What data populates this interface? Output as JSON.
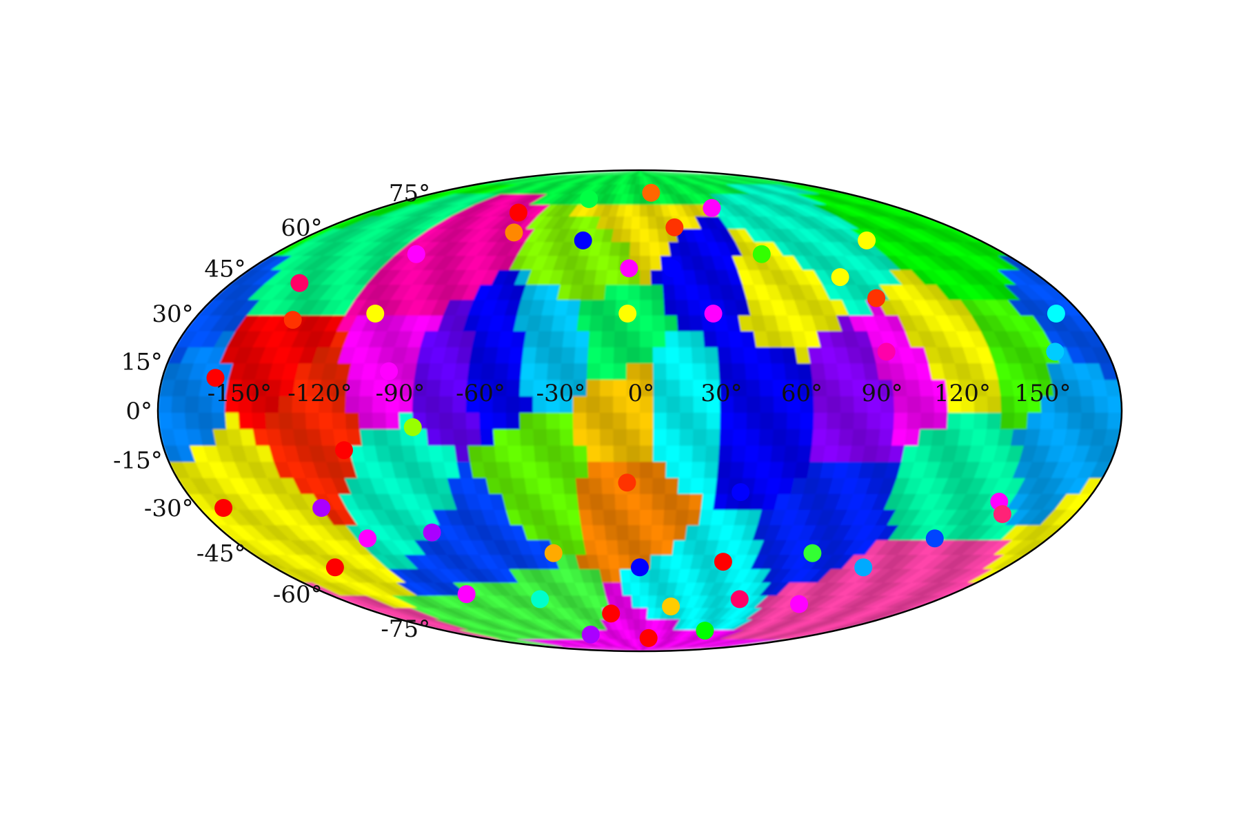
{
  "chart_data": {
    "type": "heatmap",
    "projection": "Mollweide",
    "title": "",
    "xlabel": "",
    "ylabel": "",
    "grid": false,
    "legend": "none",
    "colormap": "hsv",
    "longitude_ticks": [
      {
        "value": -150,
        "label": "-150°"
      },
      {
        "value": -120,
        "label": "-120°"
      },
      {
        "value": -90,
        "label": "-90°"
      },
      {
        "value": -60,
        "label": "-60°"
      },
      {
        "value": -30,
        "label": "-30°"
      },
      {
        "value": 0,
        "label": "0°"
      },
      {
        "value": 30,
        "label": "30°"
      },
      {
        "value": 60,
        "label": "60°"
      },
      {
        "value": 90,
        "label": "90°"
      },
      {
        "value": 120,
        "label": "120°"
      },
      {
        "value": 150,
        "label": "150°"
      }
    ],
    "latitude_ticks": [
      {
        "value": 75,
        "label": "75°"
      },
      {
        "value": 60,
        "label": "60°"
      },
      {
        "value": 45,
        "label": "45°"
      },
      {
        "value": 30,
        "label": "30°"
      },
      {
        "value": 15,
        "label": "15°"
      },
      {
        "value": 0,
        "label": "0°"
      },
      {
        "value": -15,
        "label": "-15°"
      },
      {
        "value": -30,
        "label": "-30°"
      },
      {
        "value": -45,
        "label": "-45°"
      },
      {
        "value": -60,
        "label": "-60°"
      },
      {
        "value": -75,
        "label": "-75°"
      }
    ],
    "xlim": [
      -180,
      180
    ],
    "ylim": [
      -90,
      90
    ],
    "regions": [
      {
        "lon": -140,
        "lat": 15,
        "color": "#ff0000"
      },
      {
        "lon": -125,
        "lat": 0,
        "color": "#ff2a00"
      },
      {
        "lon": -160,
        "lat": -20,
        "color": "#ffff00"
      },
      {
        "lon": -95,
        "lat": 15,
        "color": "#ff00ff"
      },
      {
        "lon": -75,
        "lat": 10,
        "color": "#6600ff"
      },
      {
        "lon": -55,
        "lat": 15,
        "color": "#0000ff"
      },
      {
        "lon": -35,
        "lat": 20,
        "color": "#00ccff"
      },
      {
        "lon": -10,
        "lat": 25,
        "color": "#00ff66"
      },
      {
        "lon": -5,
        "lat": 0,
        "color": "#ffcc00"
      },
      {
        "lon": -5,
        "lat": -25,
        "color": "#ff8800"
      },
      {
        "lon": -40,
        "lat": -20,
        "color": "#66ff00"
      },
      {
        "lon": -90,
        "lat": -20,
        "color": "#00ffcc"
      },
      {
        "lon": -70,
        "lat": -40,
        "color": "#0044ff"
      },
      {
        "lon": 15,
        "lat": 0,
        "color": "#00ffff"
      },
      {
        "lon": 45,
        "lat": 0,
        "color": "#0000ff"
      },
      {
        "lon": 85,
        "lat": 5,
        "color": "#8800ff"
      },
      {
        "lon": 100,
        "lat": 10,
        "color": "#ff00ff"
      },
      {
        "lon": 120,
        "lat": 20,
        "color": "#ffff00"
      },
      {
        "lon": 145,
        "lat": 20,
        "color": "#44ff00"
      },
      {
        "lon": 165,
        "lat": 0,
        "color": "#00aaff"
      },
      {
        "lon": 120,
        "lat": -20,
        "color": "#00ffaa"
      },
      {
        "lon": 85,
        "lat": -35,
        "color": "#0022ff"
      },
      {
        "lon": 60,
        "lat": 40,
        "color": "#ffff00"
      },
      {
        "lon": 30,
        "lat": 45,
        "color": "#0000ff"
      },
      {
        "lon": -20,
        "lat": 50,
        "color": "#88ff00"
      },
      {
        "lon": -100,
        "lat": 45,
        "color": "#ff00aa"
      },
      {
        "lon": -140,
        "lat": 45,
        "color": "#00ff88"
      },
      {
        "lon": 0,
        "lat": 60,
        "color": "#ffee00"
      },
      {
        "lon": 90,
        "lat": 55,
        "color": "#00ffcc"
      },
      {
        "lon": 150,
        "lat": 50,
        "color": "#00ff00"
      },
      {
        "lon": -170,
        "lat": 0,
        "color": "#0088ff"
      },
      {
        "lon": 175,
        "lat": 30,
        "color": "#0055ff"
      },
      {
        "lon": 30,
        "lat": -60,
        "color": "#00ffff"
      },
      {
        "lon": -60,
        "lat": -65,
        "color": "#44ff44"
      },
      {
        "lon": 120,
        "lat": -55,
        "color": "#ff44aa"
      },
      {
        "lon": 0,
        "lat": -80,
        "color": "#ff00ff"
      },
      {
        "lon": 0,
        "lat": 80,
        "color": "#00ff44"
      }
    ],
    "points": [
      {
        "lon": -160,
        "lat": 10,
        "color": "#ff0000"
      },
      {
        "lon": -140,
        "lat": 28,
        "color": "#ff3300"
      },
      {
        "lon": -112,
        "lat": -12,
        "color": "#ff0000"
      },
      {
        "lon": -108,
        "lat": 30,
        "color": "#ffff00"
      },
      {
        "lon": -95,
        "lat": 12,
        "color": "#ff00ff"
      },
      {
        "lon": -85,
        "lat": -5,
        "color": "#99ff00"
      },
      {
        "lon": -5,
        "lat": 30,
        "color": "#ffff00"
      },
      {
        "lon": -5,
        "lat": -22,
        "color": "#ff3300"
      },
      {
        "lon": 40,
        "lat": -25,
        "color": "#0000ff"
      },
      {
        "lon": 30,
        "lat": 30,
        "color": "#ff00ff"
      },
      {
        "lon": 95,
        "lat": 18,
        "color": "#ff00aa"
      },
      {
        "lon": 160,
        "lat": 18,
        "color": "#00ccff"
      },
      {
        "lon": 145,
        "lat": -28,
        "color": "#ff00ff"
      },
      {
        "lon": 150,
        "lat": -32,
        "color": "#ff2277"
      },
      {
        "lon": 90,
        "lat": 42,
        "color": "#ffff00"
      },
      {
        "lon": 100,
        "lat": 35,
        "color": "#ff3300"
      },
      {
        "lon": 60,
        "lat": 50,
        "color": "#33ff00"
      },
      {
        "lon": 20,
        "lat": 60,
        "color": "#ff3300"
      },
      {
        "lon": -30,
        "lat": 55,
        "color": "#0000ff"
      },
      {
        "lon": -70,
        "lat": 58,
        "color": "#ff8800"
      },
      {
        "lon": -110,
        "lat": 50,
        "color": "#ff00ff"
      },
      {
        "lon": -150,
        "lat": 40,
        "color": "#ff0066"
      },
      {
        "lon": -120,
        "lat": -40,
        "color": "#ff00ff"
      },
      {
        "lon": -90,
        "lat": -38,
        "color": "#aa00ff"
      },
      {
        "lon": -40,
        "lat": -45,
        "color": "#ffaa00"
      },
      {
        "lon": 0,
        "lat": -50,
        "color": "#0000ff"
      },
      {
        "lon": 40,
        "lat": -48,
        "color": "#ff0000"
      },
      {
        "lon": 80,
        "lat": -45,
        "color": "#33ff33"
      },
      {
        "lon": 110,
        "lat": -50,
        "color": "#00aaff"
      },
      {
        "lon": -150,
        "lat": -50,
        "color": "#ff0000"
      },
      {
        "lon": -100,
        "lat": -60,
        "color": "#ff00ff"
      },
      {
        "lon": -60,
        "lat": -62,
        "color": "#00ffcc"
      },
      {
        "lon": -20,
        "lat": -68,
        "color": "#ff0000"
      },
      {
        "lon": 20,
        "lat": -65,
        "color": "#ffcc00"
      },
      {
        "lon": 60,
        "lat": -62,
        "color": "#ff0066"
      },
      {
        "lon": 100,
        "lat": -64,
        "color": "#ff00ff"
      },
      {
        "lon": -50,
        "lat": -78,
        "color": "#aa00ff"
      },
      {
        "lon": 10,
        "lat": -80,
        "color": "#ff0000"
      },
      {
        "lon": 60,
        "lat": -76,
        "color": "#00ff00"
      },
      {
        "lon": -40,
        "lat": 72,
        "color": "#00ff44"
      },
      {
        "lon": 10,
        "lat": 75,
        "color": "#ff6600"
      },
      {
        "lon": 50,
        "lat": 68,
        "color": "#ff00ff"
      },
      {
        "lon": -80,
        "lat": 66,
        "color": "#ff0000"
      },
      {
        "lon": 120,
        "lat": 55,
        "color": "#ffff00"
      },
      {
        "lon": -130,
        "lat": -30,
        "color": "#aa00ff"
      },
      {
        "lon": 130,
        "lat": -40,
        "color": "#0044ff"
      },
      {
        "lon": -170,
        "lat": -30,
        "color": "#ff0000"
      },
      {
        "lon": 170,
        "lat": 30,
        "color": "#00ffff"
      },
      {
        "lon": -5,
        "lat": 45,
        "color": "#ff00ff"
      },
      {
        "lon": 15,
        "lat": 45,
        "color": "#0000ff"
      }
    ]
  }
}
